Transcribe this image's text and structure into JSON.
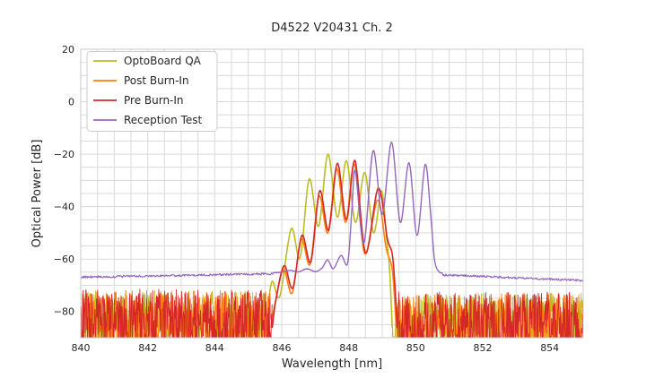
{
  "title": "D4522 V20431 Ch. 2",
  "chart_data": {
    "type": "line",
    "title": "D4522 V20431 Ch. 2",
    "xlabel": "Wavelength [nm]",
    "ylabel": "Optical Power [dB]",
    "xlim": [
      840,
      855
    ],
    "ylim": [
      -90,
      20
    ],
    "xticks": [
      840,
      842,
      844,
      846,
      848,
      850,
      852,
      854
    ],
    "yticks": [
      20,
      0,
      -20,
      -40,
      -60,
      -80
    ],
    "minor_grid": {
      "x_step": 0.5,
      "y_step": 5
    },
    "grid": true,
    "grid_color": "#d9d9d9",
    "frame_color": "#c9c9c9",
    "text_color": "#262626",
    "legend_position": "upper left",
    "series": [
      {
        "name": "OptoBoard QA",
        "color": "#bcbd22",
        "peaks_nm_dB": [
          [
            845.7,
            -68.5
          ],
          [
            846.3,
            -48.5
          ],
          [
            846.8,
            -29.5
          ],
          [
            847.4,
            -20
          ],
          [
            847.95,
            -22.5
          ],
          [
            848.5,
            -27
          ],
          [
            849.0,
            -34
          ]
        ],
        "noise_floor_dB": -80,
        "segments": [
          {
            "type": "noise",
            "x": [
              840.0,
              845.52
            ],
            "base": [
              -72,
              -72
            ],
            "depth": 24,
            "step": 0.012,
            "seed": 101,
            "lw": 0.9
          },
          {
            "type": "smooth",
            "lw": 1.6,
            "points": [
              [
                845.52,
                -86
              ],
              [
                845.6,
                -77
              ],
              [
                845.72,
                -68.5
              ],
              [
                845.95,
                -74
              ],
              [
                846.28,
                -48.5
              ],
              [
                846.55,
                -59.5
              ],
              [
                846.82,
                -29.5
              ],
              [
                847.1,
                -47.5
              ],
              [
                847.38,
                -20
              ],
              [
                847.66,
                -44
              ],
              [
                847.93,
                -22.5
              ],
              [
                848.2,
                -46
              ],
              [
                848.48,
                -27
              ],
              [
                848.74,
                -50
              ],
              [
                848.98,
                -34
              ],
              [
                849.13,
                -52
              ],
              [
                849.22,
                -64
              ],
              [
                849.3,
                -86
              ]
            ]
          },
          {
            "type": "noise",
            "x": [
              849.3,
              855.0
            ],
            "base": [
              -73,
              -73
            ],
            "depth": 24,
            "step": 0.012,
            "seed": 102,
            "lw": 0.9
          }
        ]
      },
      {
        "name": "Post Burn-In",
        "color": "#ff7f0e",
        "peaks_nm_dB": [
          [
            846.05,
            -64
          ],
          [
            846.6,
            -52.5
          ],
          [
            847.1,
            -36
          ],
          [
            847.65,
            -25.5
          ],
          [
            848.15,
            -24
          ],
          [
            848.85,
            -37.5
          ]
        ],
        "noise_floor_dB": -80,
        "segments": [
          {
            "type": "noise",
            "x": [
              840.0,
              845.68
            ],
            "base": [
              -72,
              -72
            ],
            "depth": 24,
            "step": 0.012,
            "seed": 201,
            "lw": 0.9
          },
          {
            "type": "smooth",
            "lw": 1.6,
            "points": [
              [
                845.68,
                -86
              ],
              [
                845.8,
                -77
              ],
              [
                846.05,
                -64
              ],
              [
                846.31,
                -73
              ],
              [
                846.58,
                -52.5
              ],
              [
                846.85,
                -62
              ],
              [
                847.11,
                -36
              ],
              [
                847.38,
                -50
              ],
              [
                847.64,
                -25.5
              ],
              [
                847.91,
                -46
              ],
              [
                848.17,
                -24
              ],
              [
                848.48,
                -58
              ],
              [
                848.86,
                -37.5
              ],
              [
                849.12,
                -56
              ],
              [
                849.3,
                -64
              ],
              [
                849.42,
                -86
              ]
            ]
          },
          {
            "type": "noise",
            "x": [
              849.42,
              855.0
            ],
            "base": [
              -73,
              -73
            ],
            "depth": 24,
            "step": 0.012,
            "seed": 202,
            "lw": 0.9
          }
        ]
      },
      {
        "name": "Pre Burn-In",
        "color": "#d62728",
        "peaks_nm_dB": [
          [
            846.05,
            -62.5
          ],
          [
            846.6,
            -51
          ],
          [
            847.15,
            -34
          ],
          [
            847.65,
            -23.5
          ],
          [
            848.2,
            -22.5
          ],
          [
            848.9,
            -33
          ]
        ],
        "noise_floor_dB": -80,
        "segments": [
          {
            "type": "noise",
            "x": [
              840.0,
              845.72
            ],
            "base": [
              -71.5,
              -71.5
            ],
            "depth": 25,
            "step": 0.012,
            "seed": 301,
            "lw": 0.9
          },
          {
            "type": "smooth",
            "lw": 1.6,
            "points": [
              [
                845.72,
                -86
              ],
              [
                845.82,
                -76
              ],
              [
                846.07,
                -62.5
              ],
              [
                846.33,
                -71
              ],
              [
                846.6,
                -51
              ],
              [
                846.87,
                -61
              ],
              [
                847.13,
                -34
              ],
              [
                847.4,
                -49
              ],
              [
                847.66,
                -23.5
              ],
              [
                847.93,
                -45
              ],
              [
                848.19,
                -22.5
              ],
              [
                848.5,
                -57.5
              ],
              [
                848.88,
                -33
              ],
              [
                849.15,
                -52
              ],
              [
                849.32,
                -60
              ],
              [
                849.45,
                -86
              ]
            ]
          },
          {
            "type": "noise",
            "x": [
              849.45,
              855.0
            ],
            "base": [
              -72.5,
              -72.5
            ],
            "depth": 25,
            "step": 0.012,
            "seed": 302,
            "lw": 0.9
          }
        ]
      },
      {
        "name": "Reception Test",
        "color": "#9467bd",
        "peaks_nm_dB": [
          [
            848.2,
            -26.5
          ],
          [
            848.75,
            -18.7
          ],
          [
            849.3,
            -15.5
          ],
          [
            849.8,
            -23.3
          ],
          [
            850.3,
            -24
          ]
        ],
        "noise_floor_dB": -66.5,
        "segments": [
          {
            "type": "noise",
            "x": [
              840.0,
              845.75
            ],
            "base": [
              -66.5,
              -65.2
            ],
            "depth": 0.8,
            "step": 0.02,
            "seed": 401,
            "lw": 1.2
          },
          {
            "type": "smooth",
            "lw": 1.4,
            "points": [
              [
                845.75,
                -65.2
              ],
              [
                846.0,
                -65.0
              ],
              [
                846.25,
                -64.3
              ],
              [
                846.5,
                -64.9
              ],
              [
                846.75,
                -63.7
              ],
              [
                847.0,
                -64.8
              ],
              [
                847.2,
                -63.5
              ],
              [
                847.37,
                -60.3
              ],
              [
                847.54,
                -63.7
              ],
              [
                847.77,
                -58.6
              ],
              [
                847.97,
                -61.5
              ],
              [
                848.1,
                -40
              ],
              [
                848.2,
                -26.5
              ],
              [
                848.45,
                -54
              ],
              [
                848.73,
                -18.7
              ],
              [
                849.0,
                -43
              ],
              [
                849.28,
                -15.5
              ],
              [
                849.54,
                -46
              ],
              [
                849.8,
                -23.3
              ],
              [
                850.04,
                -51
              ],
              [
                850.28,
                -24
              ],
              [
                850.44,
                -42
              ],
              [
                850.56,
                -60
              ],
              [
                850.68,
                -64.6
              ],
              [
                850.8,
                -65.4
              ]
            ]
          },
          {
            "type": "noise",
            "x": [
              850.8,
              855.0
            ],
            "base": [
              -65.6,
              -67.8
            ],
            "depth": 0.8,
            "step": 0.02,
            "seed": 402,
            "lw": 1.2
          }
        ]
      }
    ]
  }
}
